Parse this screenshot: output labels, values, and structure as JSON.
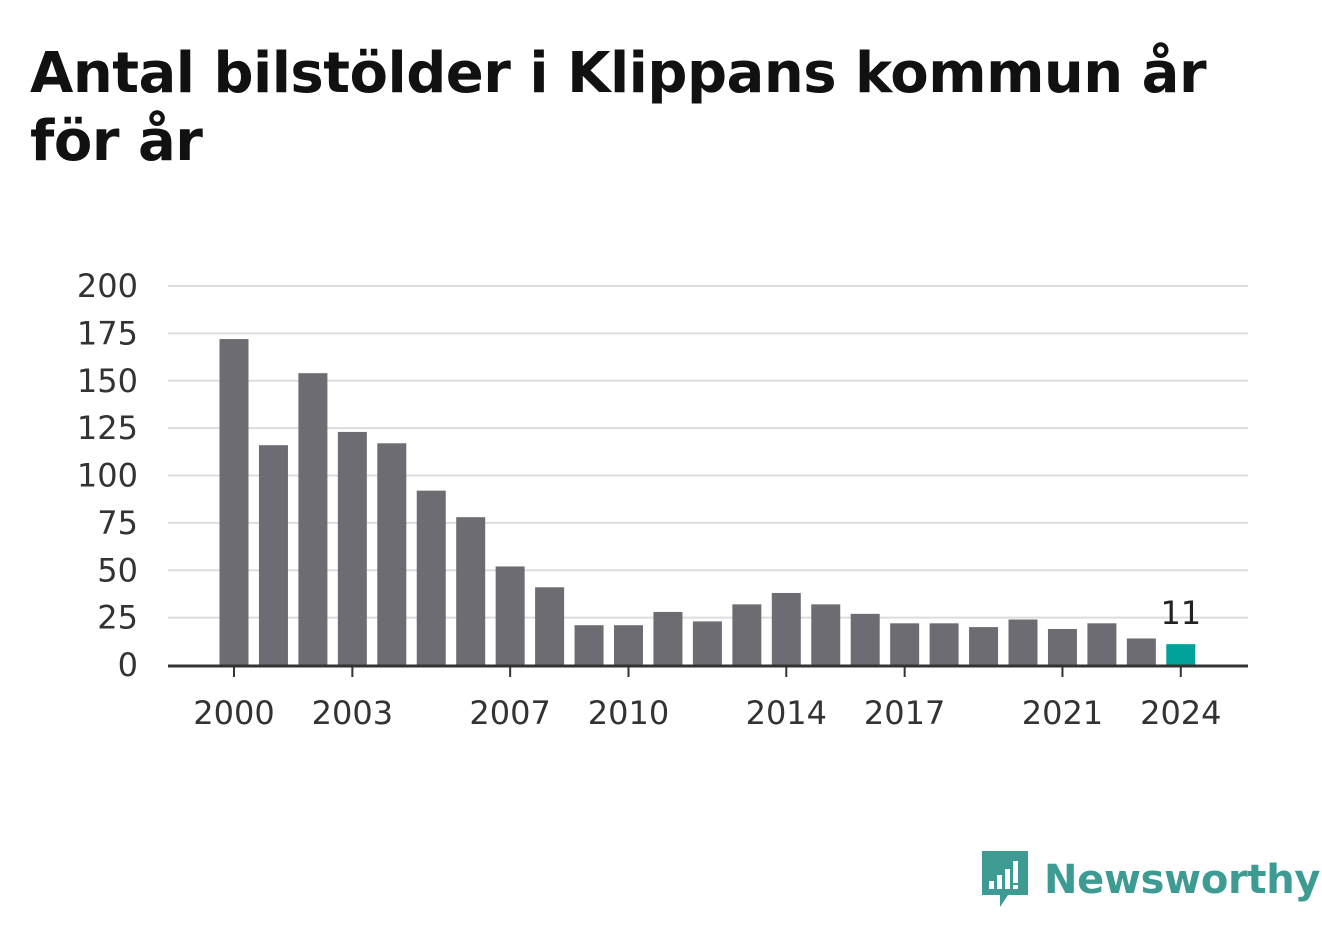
{
  "title": "Antal bilstölder i Klippans kommun år för år",
  "brand": {
    "name": "Newsworthy",
    "icon": "chart-speech-bubble-icon",
    "color": "#3d9b93"
  },
  "colors": {
    "bar": "#6d6c72",
    "highlight": "#00a29b",
    "grid": "#dddddd",
    "axis": "#333333"
  },
  "chart_data": {
    "type": "bar",
    "title": "Antal bilstölder i Klippans kommun år för år",
    "xlabel": "",
    "ylabel": "",
    "x": [
      2000,
      2001,
      2002,
      2003,
      2004,
      2005,
      2006,
      2007,
      2008,
      2009,
      2010,
      2011,
      2012,
      2013,
      2014,
      2015,
      2016,
      2017,
      2018,
      2019,
      2020,
      2021,
      2022,
      2023,
      2024
    ],
    "values": [
      172,
      116,
      154,
      123,
      117,
      92,
      78,
      52,
      41,
      21,
      21,
      28,
      23,
      32,
      38,
      32,
      27,
      22,
      22,
      20,
      24,
      19,
      22,
      14,
      11
    ],
    "x_tick_labels": [
      2000,
      2003,
      2007,
      2010,
      2014,
      2017,
      2021,
      2024
    ],
    "y_ticks": [
      0,
      25,
      50,
      75,
      100,
      125,
      150,
      175,
      200
    ],
    "ylim": [
      0,
      200
    ],
    "grid": true,
    "legend": "none",
    "highlight": {
      "x": 2024,
      "label": "11"
    }
  }
}
